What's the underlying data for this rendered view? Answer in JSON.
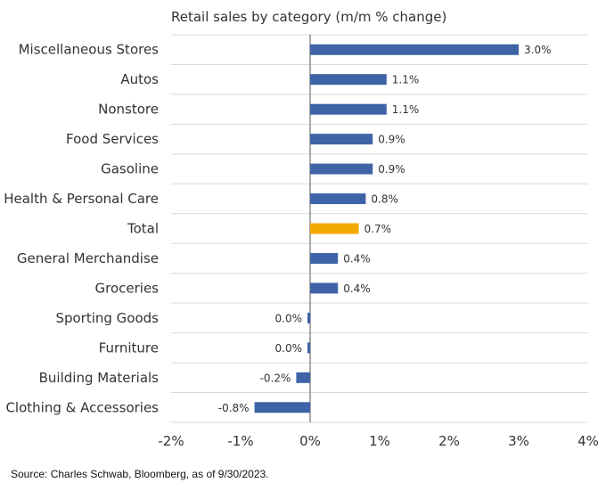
{
  "chart_data": {
    "type": "bar",
    "orientation": "horizontal",
    "title": "Retail sales by category (m/m % change)",
    "categories": [
      "Miscellaneous Stores",
      "Autos",
      "Nonstore",
      "Food Services",
      "Gasoline",
      "Health & Personal Care",
      "Total",
      "General Merchandise",
      "Groceries",
      "Sporting Goods",
      "Furniture",
      "Building Materials",
      "Clothing & Accessories"
    ],
    "values": [
      3.0,
      1.1,
      1.1,
      0.9,
      0.9,
      0.8,
      0.7,
      0.4,
      0.4,
      0.0,
      0.0,
      -0.2,
      -0.8
    ],
    "value_labels": [
      "3.0%",
      "1.1%",
      "1.1%",
      "0.9%",
      "0.9%",
      "0.8%",
      "0.7%",
      "0.4%",
      "0.4%",
      "0.0%",
      "0.0%",
      "-0.2%",
      "-0.8%"
    ],
    "highlight_category": "Total",
    "xlim": [
      -2,
      4
    ],
    "xticks": [
      -2,
      -1,
      0,
      1,
      2,
      3,
      4
    ],
    "xtick_labels": [
      "-2%",
      "-1%",
      "0%",
      "1%",
      "2%",
      "3%",
      "4%"
    ],
    "xlabel": "",
    "ylabel": "",
    "grid": true,
    "colors": {
      "bar": "#3e63a6",
      "highlight": "#f4a900",
      "grid": "#d9d9d9",
      "zero_line": "#8c8c8c"
    }
  },
  "source": "Source: Charles Schwab, Bloomberg, as of 9/30/2023."
}
